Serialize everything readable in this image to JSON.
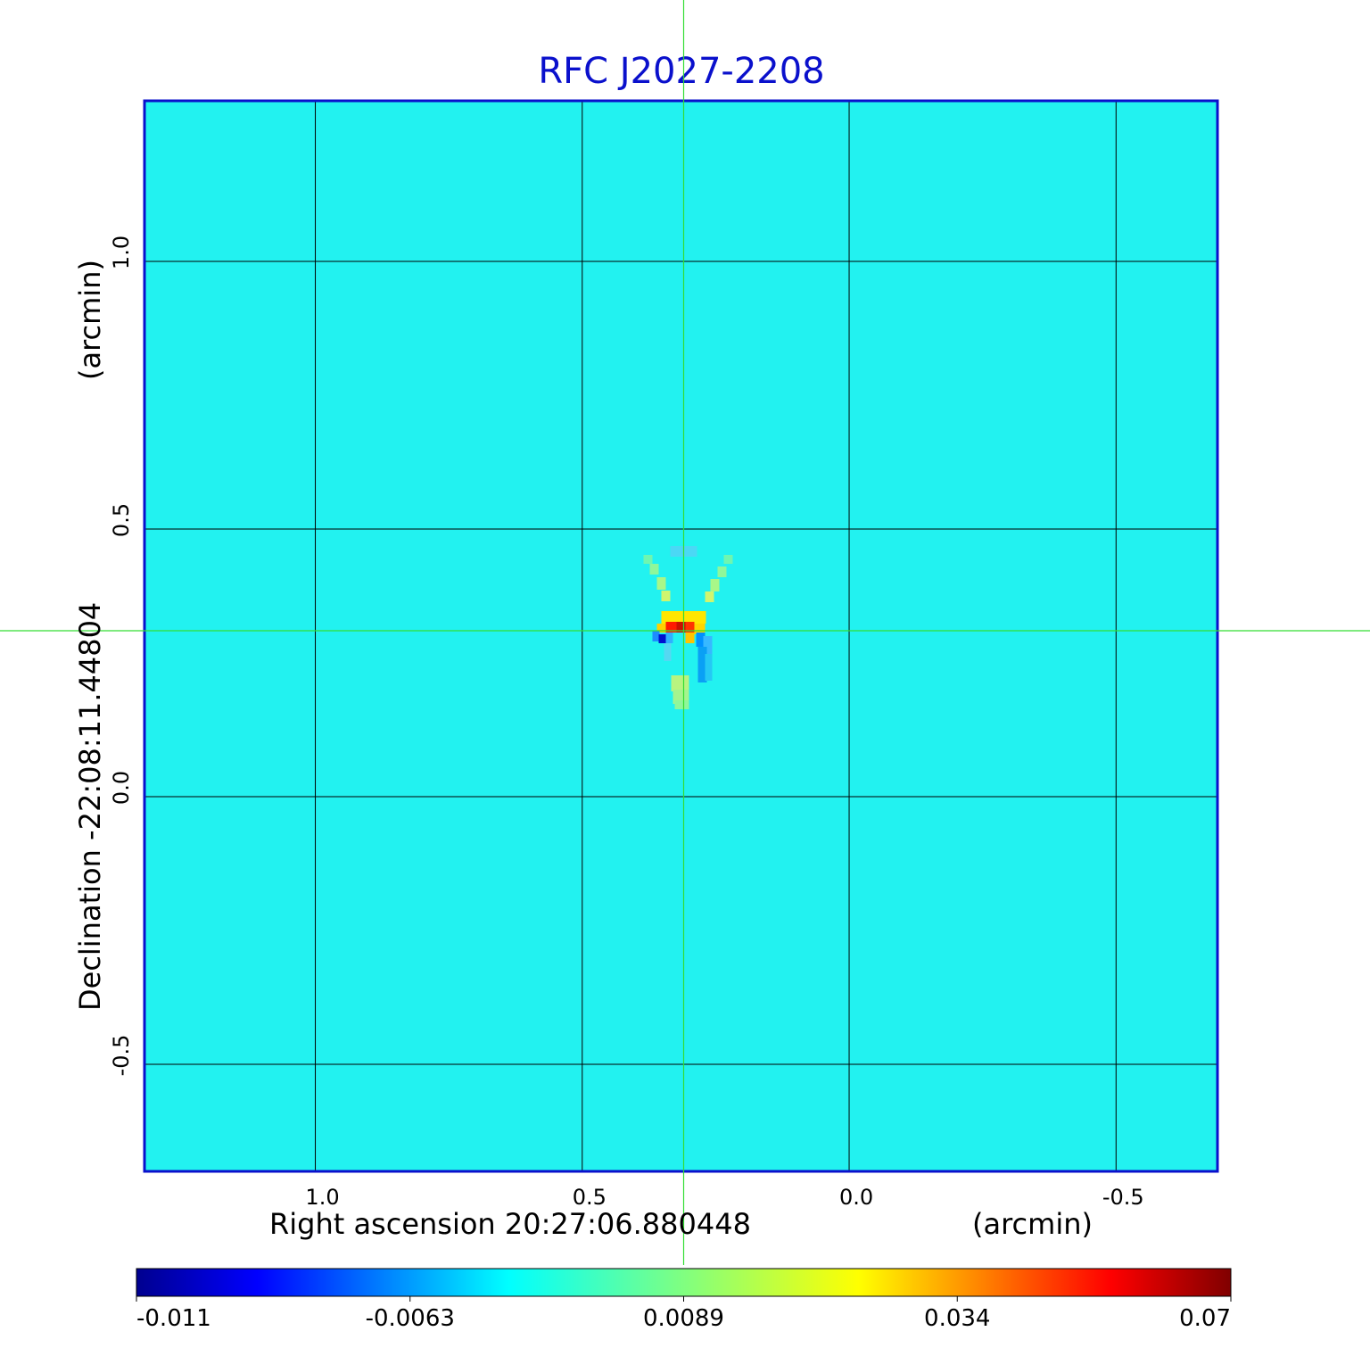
{
  "chart_data": {
    "type": "heatmap",
    "title": "RFC J2027-2208",
    "xlabel": "Right ascension  20:27:06.880448",
    "xunit": "(arcmin)",
    "ylabel": "Declination  -22:08:11.44804",
    "yunit": "(arcmin)",
    "xlim": [
      1.32,
      -0.69
    ],
    "ylim": [
      -0.7,
      1.3
    ],
    "x_ticks": [
      {
        "value": 1.0,
        "label": "1.0"
      },
      {
        "value": 0.5,
        "label": "0.5"
      },
      {
        "value": 0.0,
        "label": "0.0"
      },
      {
        "value": -0.5,
        "label": "-0.5"
      }
    ],
    "y_ticks": [
      {
        "value": 1.0,
        "label": "1.0"
      },
      {
        "value": 0.5,
        "label": "0.5"
      },
      {
        "value": 0.0,
        "label": "0.0"
      },
      {
        "value": -0.5,
        "label": "-0.5"
      }
    ],
    "grid": true,
    "crosshair": {
      "x": 0.31,
      "y": 0.31,
      "color": "#33dd33"
    },
    "source_peak": {
      "x": 0.31,
      "y": 0.31,
      "value": 0.07
    },
    "colormap": "jet",
    "colorbar": {
      "min": -0.011,
      "max": 0.07,
      "ticks": [
        {
          "value": -0.011,
          "label": "-0.011"
        },
        {
          "value": -0.0063,
          "label": "-0.0063"
        },
        {
          "value": 0.0089,
          "label": "0.0089"
        },
        {
          "value": 0.034,
          "label": "0.034"
        },
        {
          "value": 0.07,
          "label": "0.07"
        }
      ]
    },
    "colors": {
      "background": "#22f2f0",
      "frame": "#0a10cc",
      "grid": "#000000"
    }
  }
}
